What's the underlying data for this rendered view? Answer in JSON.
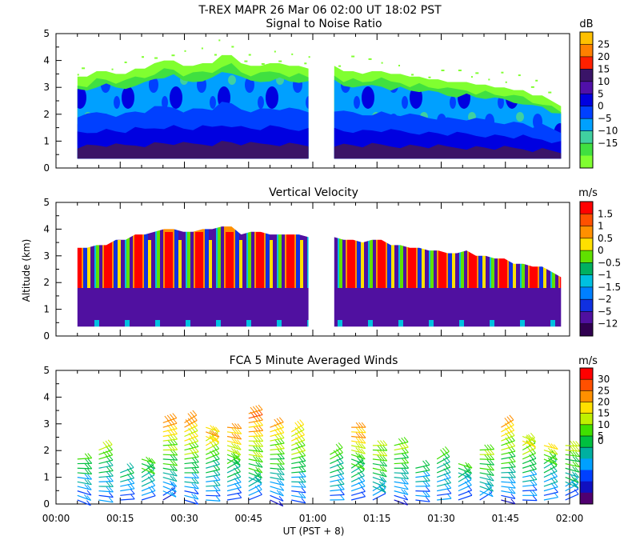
{
  "figure": {
    "title": "T-REX   MAPR 26 Mar 06   02:00 UT   18:02   PST",
    "xlabel": "UT  (PST + 8)",
    "ylabel": "Altitude (km)"
  },
  "chart_data": [
    {
      "type": "heatmap",
      "title": "Signal to Noise Ratio",
      "unit": "dB",
      "x_range": [
        "00:00",
        "02:00"
      ],
      "ylim": [
        0,
        5
      ],
      "yticks": [
        "0",
        "1",
        "2",
        "3",
        "4",
        "5"
      ],
      "colorbar_labels": [
        "25",
        "20",
        "15",
        "10",
        "5",
        "0",
        "−5",
        "−10",
        "−15"
      ],
      "colors": [
        "#ffc000",
        "#ff8000",
        "#ff2000",
        "#3a1468",
        "#5010a8",
        "#0000e0",
        "#0040ff",
        "#00a0ff",
        "#40d0a0",
        "#40e040",
        "#80ff30"
      ],
      "gap": [
        "00:59",
        "01:05"
      ],
      "echo_top_km": [
        3.4,
        3.6,
        3.5,
        3.7,
        3.9,
        4.0,
        3.8,
        3.9,
        4.2,
        3.9,
        3.8,
        3.9,
        3.8,
        3.7,
        3.8,
        3.6,
        3.5,
        3.6,
        3.5,
        3.4,
        3.3,
        3.2,
        3.2,
        3.1,
        3.0,
        2.9,
        2.7,
        2.5,
        2.3
      ]
    },
    {
      "type": "heatmap",
      "title": "Vertical Velocity",
      "unit": "m/s",
      "x_range": [
        "00:00",
        "02:00"
      ],
      "ylim": [
        0,
        5
      ],
      "yticks": [
        "0",
        "1",
        "2",
        "3",
        "4",
        "5"
      ],
      "colorbar_labels": [
        "1.5",
        "1",
        "0.5",
        "0",
        "−0.5",
        "−1",
        "−1.5",
        "−2",
        "−5",
        "−12"
      ],
      "colors": [
        "#ff0000",
        "#ff5000",
        "#ff9000",
        "#ffe000",
        "#60e000",
        "#00b060",
        "#00c0e0",
        "#0080ff",
        "#1030e0",
        "#5010a0",
        "#300050"
      ],
      "gap": [
        "00:59",
        "01:05"
      ],
      "echo_top_km": [
        3.3,
        3.4,
        3.6,
        3.8,
        3.9,
        4.0,
        3.9,
        4.0,
        4.1,
        3.8,
        3.9,
        3.8,
        3.8,
        3.7,
        3.7,
        3.6,
        3.5,
        3.6,
        3.4,
        3.3,
        3.2,
        3.1,
        3.2,
        3.0,
        2.9,
        2.7,
        2.6,
        2.4,
        2.2
      ]
    },
    {
      "type": "wind-barbs",
      "title": "FCA 5 Minute Averaged Winds",
      "unit": "m/s",
      "x_range": [
        "00:00",
        "02:00"
      ],
      "ylim": [
        0,
        5
      ],
      "yticks": [
        "0",
        "1",
        "2",
        "3",
        "4",
        "5"
      ],
      "xticks": [
        "00:00",
        "00:15",
        "00:30",
        "00:45",
        "01:00",
        "01:15",
        "01:30",
        "01:45",
        "02:00"
      ],
      "colorbar_labels": [
        "30",
        "25",
        "20",
        "15",
        "10",
        "5",
        "0"
      ],
      "colors": [
        "#ff0000",
        "#ff5000",
        "#ff9000",
        "#ffe000",
        "#c0f000",
        "#40e000",
        "#00c040",
        "#00b0a0",
        "#00a0ff",
        "#0040ff",
        "#1010c0",
        "#500070"
      ],
      "profile_times_min": [
        5,
        10,
        15,
        20,
        25,
        30,
        35,
        40,
        45,
        50,
        55,
        64,
        69,
        74,
        79,
        84,
        89,
        94,
        99,
        104,
        109,
        114,
        119
      ],
      "profile_tops_km": [
        1.8,
        2.1,
        1.2,
        1.7,
        3.2,
        3.1,
        2.9,
        3.0,
        3.5,
        2.9,
        2.8,
        2.0,
        3.0,
        2.3,
        2.2,
        1.5,
        1.7,
        1.6,
        2.1,
        3.0,
        2.6,
        2.3,
        2.2
      ]
    }
  ]
}
